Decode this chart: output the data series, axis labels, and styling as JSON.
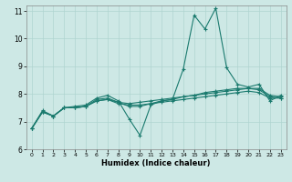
{
  "xlabel": "Humidex (Indice chaleur)",
  "ylabel": "",
  "xlim": [
    -0.5,
    23.5
  ],
  "ylim": [
    6,
    11.2
  ],
  "yticks": [
    6,
    7,
    8,
    9,
    10,
    11
  ],
  "xticks": [
    0,
    1,
    2,
    3,
    4,
    5,
    6,
    7,
    8,
    9,
    10,
    11,
    12,
    13,
    14,
    15,
    16,
    17,
    18,
    19,
    20,
    21,
    22,
    23
  ],
  "bg_color": "#cde8e5",
  "grid_color": "#afd4d0",
  "line_color": "#1a7a6e",
  "lines": [
    [
      6.75,
      7.4,
      7.2,
      7.5,
      7.55,
      7.6,
      7.85,
      7.95,
      7.75,
      7.1,
      6.5,
      7.6,
      7.75,
      7.8,
      8.9,
      10.85,
      10.35,
      11.1,
      8.95,
      8.35,
      8.25,
      8.35,
      7.75,
      7.95
    ],
    [
      6.75,
      7.35,
      7.2,
      7.5,
      7.5,
      7.55,
      7.8,
      7.85,
      7.7,
      7.55,
      7.55,
      7.65,
      7.75,
      7.8,
      7.9,
      7.95,
      8.05,
      8.1,
      8.15,
      8.2,
      8.2,
      8.2,
      7.95,
      7.9
    ],
    [
      6.75,
      7.35,
      7.2,
      7.5,
      7.5,
      7.55,
      7.75,
      7.8,
      7.7,
      7.65,
      7.7,
      7.75,
      7.8,
      7.85,
      7.9,
      7.95,
      8.0,
      8.05,
      8.1,
      8.15,
      8.2,
      8.15,
      7.9,
      7.85
    ],
    [
      6.75,
      7.35,
      7.2,
      7.5,
      7.5,
      7.55,
      7.75,
      7.8,
      7.65,
      7.6,
      7.6,
      7.65,
      7.7,
      7.75,
      7.8,
      7.85,
      7.9,
      7.95,
      8.0,
      8.05,
      8.1,
      8.05,
      7.85,
      7.85
    ]
  ]
}
